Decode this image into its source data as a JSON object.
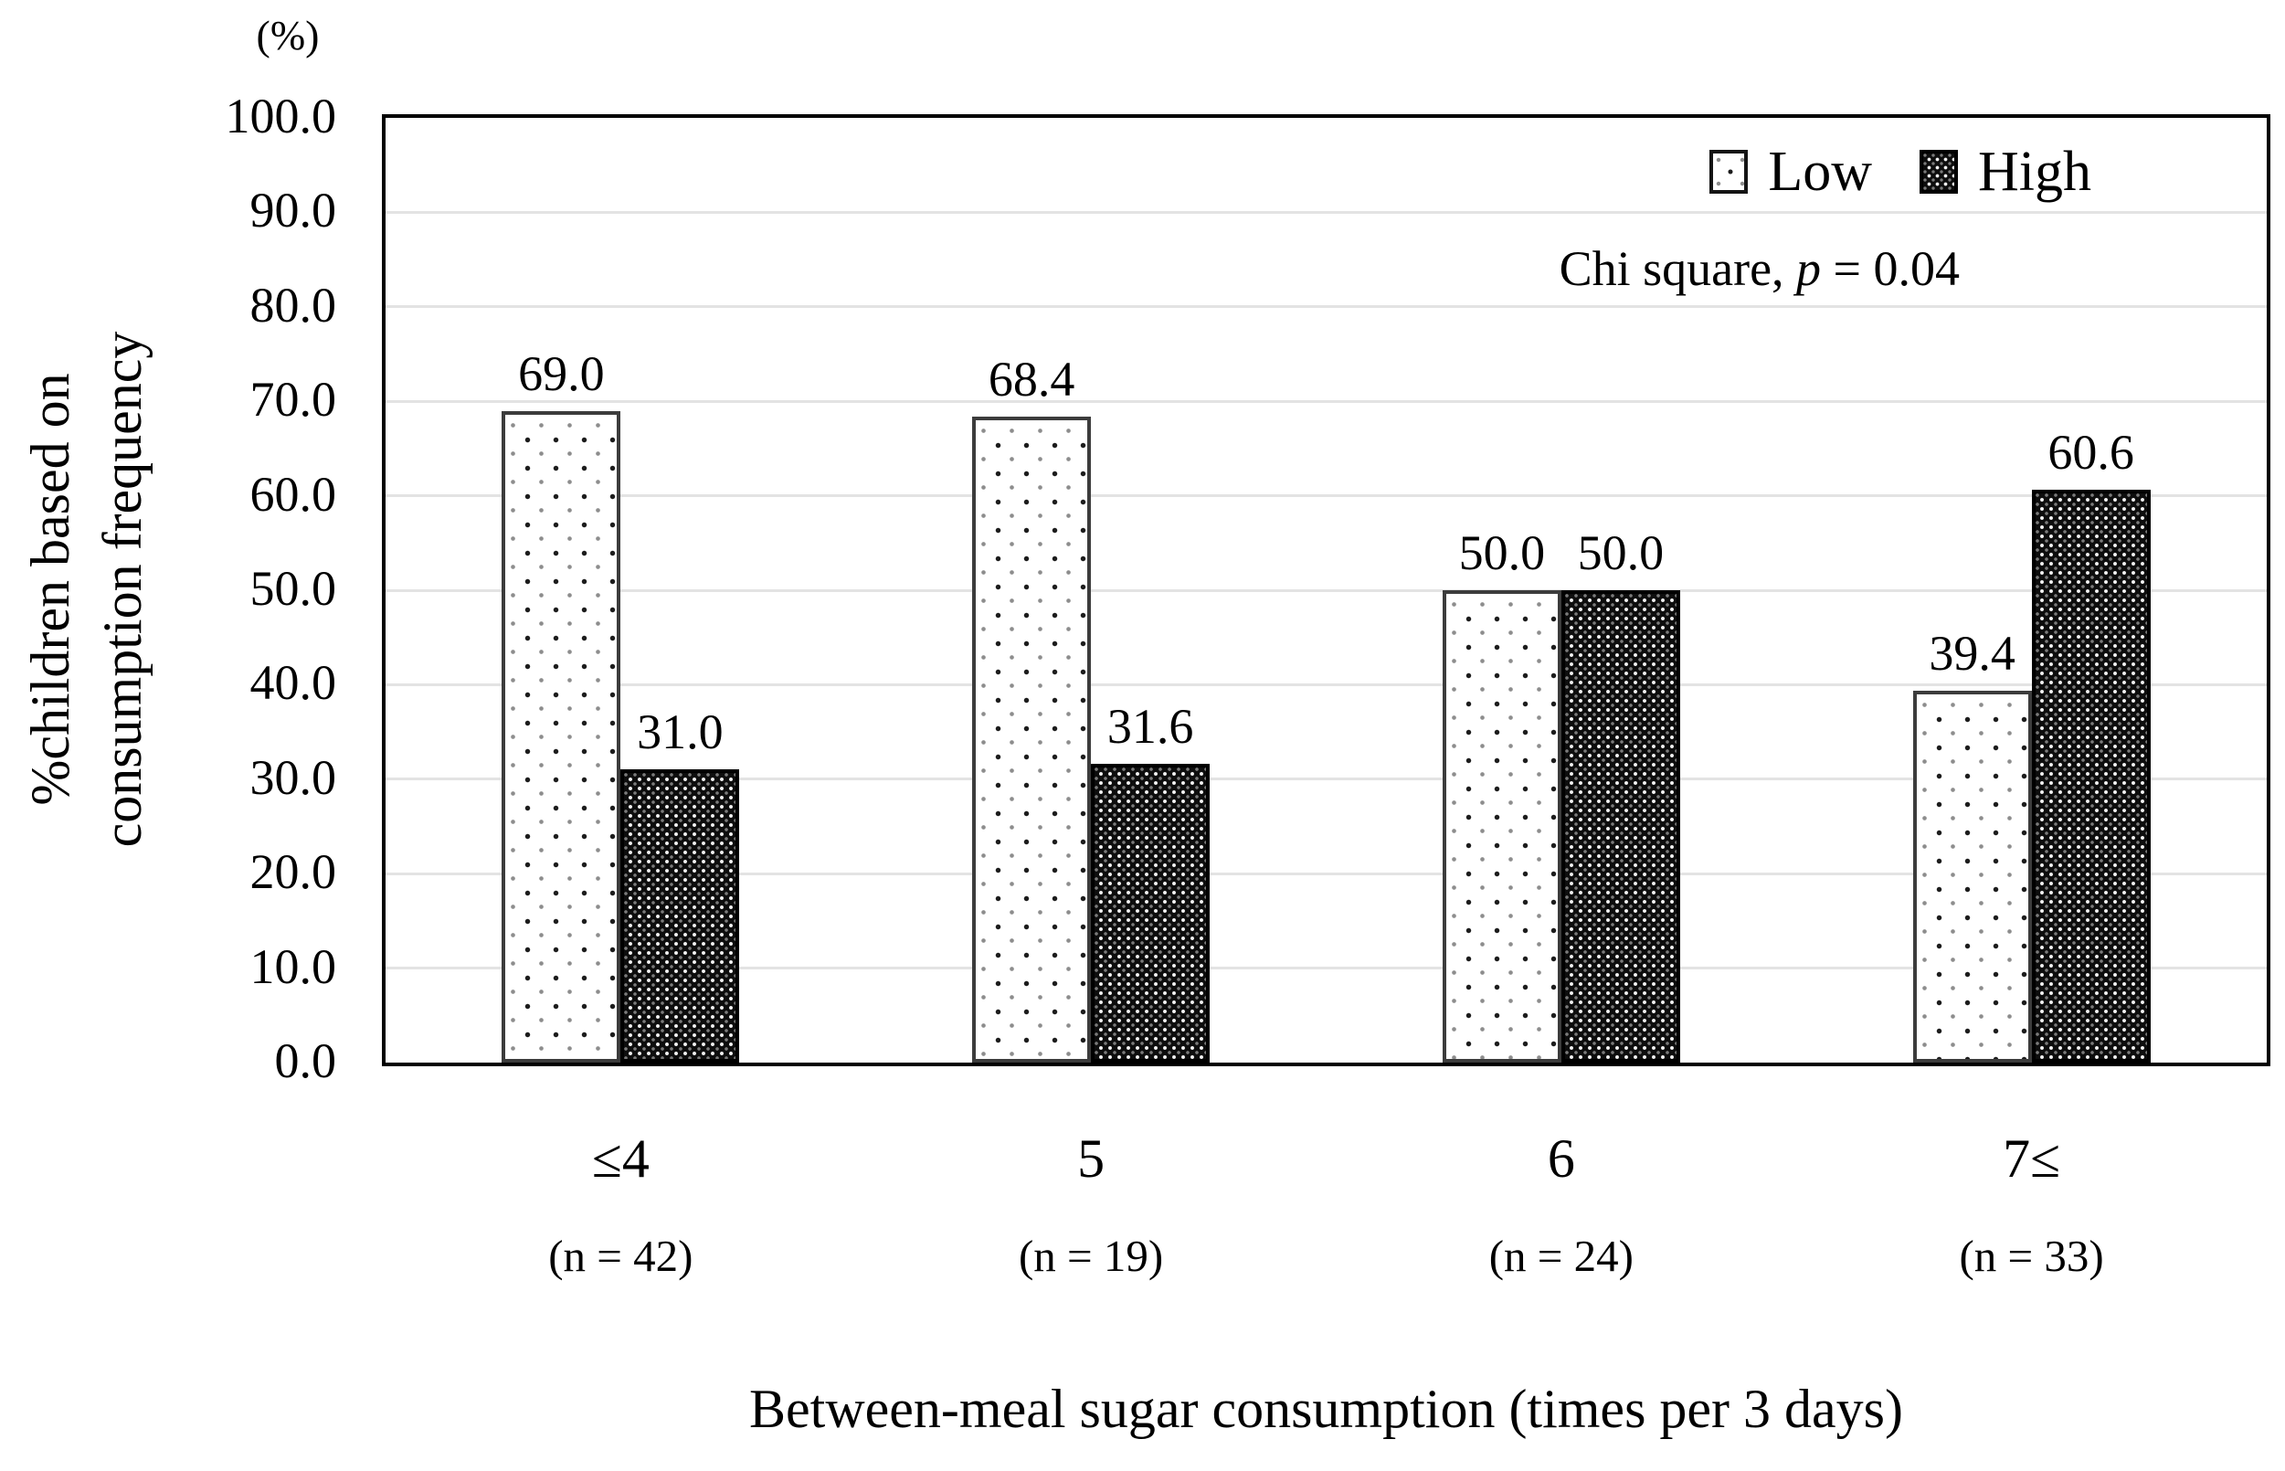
{
  "figure": {
    "y_axis": {
      "unit": "(%)",
      "title_line1": "%children based on",
      "title_line2": "consumption frequency",
      "tick_labels": [
        "100.0",
        "90.0",
        "80.0",
        "70.0",
        "60.0",
        "50.0",
        "40.0",
        "30.0",
        "20.0",
        "10.0",
        "0.0"
      ]
    },
    "x_axis": {
      "title": "Between-meal sugar consumption (times per 3 days)"
    },
    "legend": {
      "low": "Low",
      "high": "High"
    },
    "annotation": {
      "prefix": "Chi square, ",
      "p": "p",
      "suffix": " = 0.04"
    }
  },
  "chart_data": {
    "type": "bar",
    "title": "",
    "categories": [
      "≤4",
      "5",
      "6",
      "7≤"
    ],
    "category_sublabels": [
      "(n = 42)",
      "(n = 19)",
      "(n = 24)",
      "(n = 33)"
    ],
    "series": [
      {
        "name": "Low",
        "pattern": "dotted-light",
        "values": [
          69.0,
          68.4,
          50.0,
          39.4
        ],
        "labels": [
          "69.0",
          "68.4",
          "50.0",
          "39.4"
        ]
      },
      {
        "name": "High",
        "pattern": "dense-dark",
        "values": [
          31.0,
          31.6,
          50.0,
          60.6
        ],
        "labels": [
          "31.0",
          "31.6",
          "50.0",
          "60.6"
        ]
      }
    ],
    "xlabel": "Between-meal sugar consumption (times per 3 days)",
    "ylabel": "%children based on consumption frequency",
    "y_unit": "(%)",
    "ylim": [
      0,
      100
    ],
    "ytick_step": 10,
    "grid": true,
    "legend_position": "top-right",
    "annotation": "Chi square, p = 0.04"
  }
}
